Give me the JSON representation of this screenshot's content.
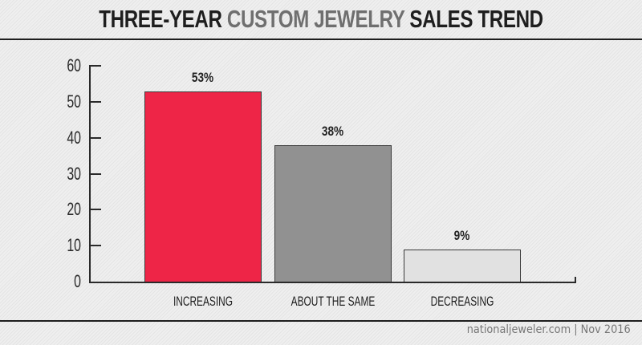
{
  "title": {
    "part1": "THREE-YEAR ",
    "part2": "CUSTOM JEWELRY",
    "part3": " SALES TREND"
  },
  "credit": "nationaljeweler.com | Nov 2016",
  "colors": {
    "increasing": "#ee2547",
    "about_the_same": "#919191",
    "decreasing": "#e1e1e1",
    "title_accent": "#6f6f6f"
  },
  "y_ticks": [
    "0",
    "10",
    "20",
    "30",
    "40",
    "50",
    "60"
  ],
  "bars": [
    {
      "label": "INCREASING",
      "value": 53,
      "value_label": "53%"
    },
    {
      "label": "ABOUT THE SAME",
      "value": 38,
      "value_label": "38%"
    },
    {
      "label": "DECREASING",
      "value": 9,
      "value_label": "9%"
    }
  ],
  "chart_data": {
    "type": "bar",
    "title": "Three-Year Custom Jewelry Sales Trend",
    "categories": [
      "Increasing",
      "About the same",
      "Decreasing"
    ],
    "values": [
      53,
      38,
      9
    ],
    "data_labels": [
      "53%",
      "38%",
      "9%"
    ],
    "xlabel": "",
    "ylabel": "",
    "ylim": [
      0,
      60
    ],
    "yticks": [
      0,
      10,
      20,
      30,
      40,
      50,
      60
    ],
    "grid": false,
    "legend": null,
    "colors": [
      "#ee2547",
      "#919191",
      "#e1e1e1"
    ],
    "source": "nationaljeweler.com | Nov 2016"
  }
}
